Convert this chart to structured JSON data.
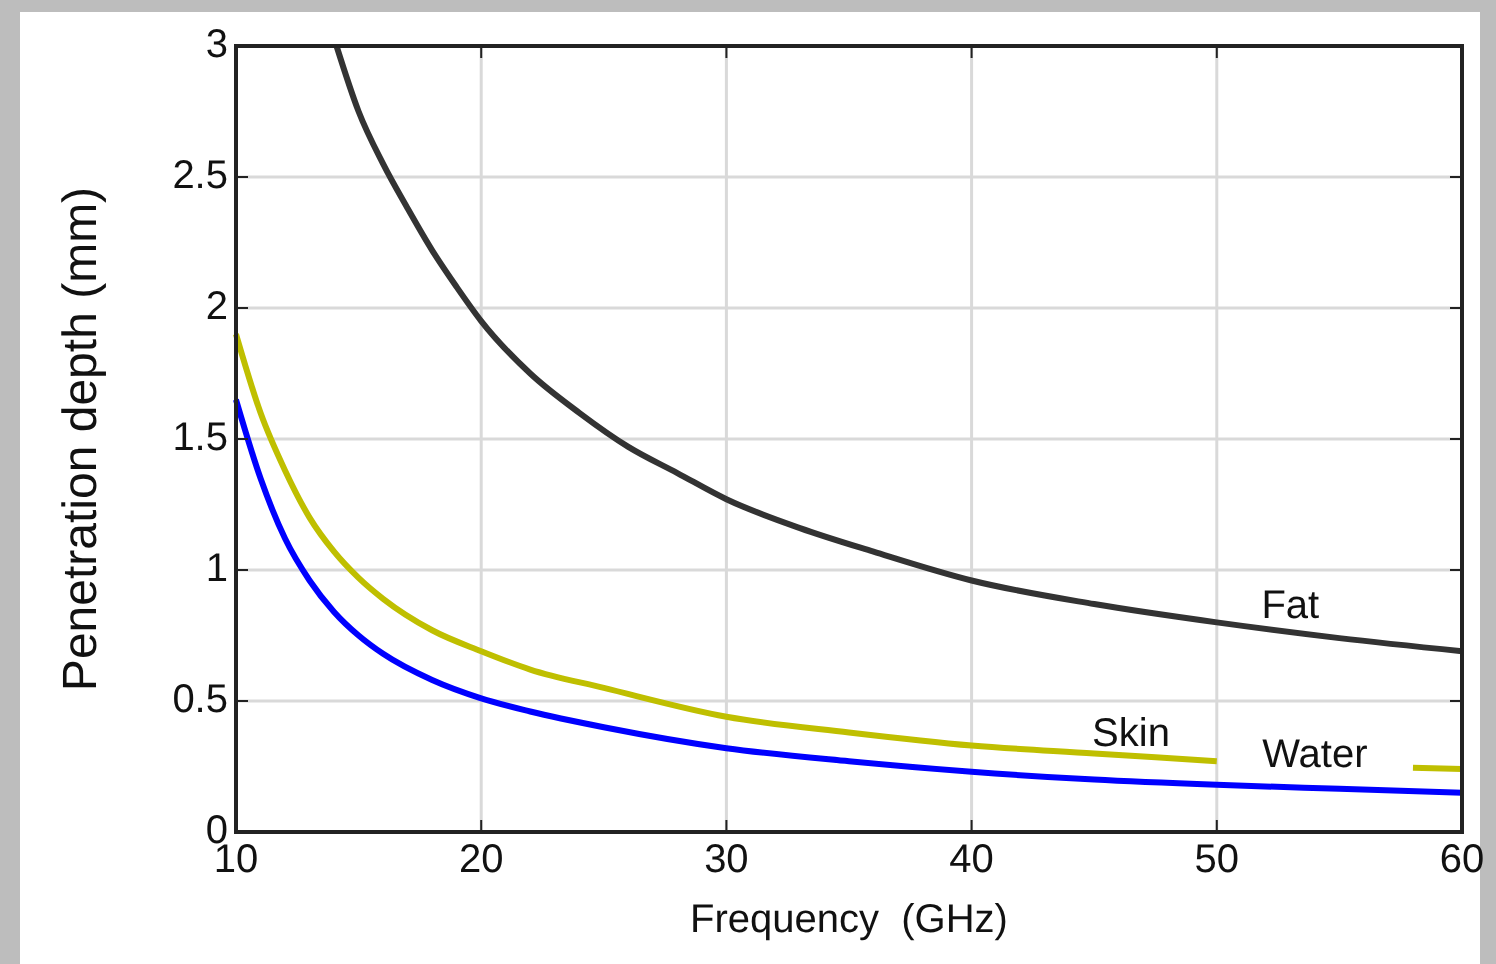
{
  "chart_data": {
    "type": "line",
    "xlabel": "Frequency  (GHz)",
    "ylabel": "Penetration depth (mm)",
    "xlim": [
      10,
      60
    ],
    "ylim": [
      0,
      3
    ],
    "xticks": [
      10,
      20,
      30,
      40,
      50,
      60
    ],
    "yticks": [
      0,
      0.5,
      1,
      1.5,
      2,
      2.5,
      3
    ],
    "grid": true,
    "line_style": "solid",
    "series": [
      {
        "name": "Fat",
        "color": "#333333",
        "x": [
          14.1,
          15,
          16,
          17,
          18,
          19,
          20,
          22,
          24,
          26,
          28,
          30,
          33,
          36,
          40,
          45,
          50,
          55,
          60
        ],
        "values": [
          3,
          2.75,
          2.55,
          2.38,
          2.22,
          2.08,
          1.95,
          1.75,
          1.6,
          1.47,
          1.37,
          1.27,
          1.16,
          1.07,
          0.96,
          0.87,
          0.8,
          0.74,
          0.69
        ]
      },
      {
        "name": "Skin",
        "color": "#bfbf00",
        "x": [
          10,
          11,
          12,
          13,
          14,
          15,
          16,
          18,
          20,
          22,
          25,
          30,
          35,
          40,
          45,
          50,
          54,
          58,
          60
        ],
        "values": [
          1.9,
          1.6,
          1.38,
          1.2,
          1.07,
          0.97,
          0.89,
          0.77,
          0.69,
          0.62,
          0.55,
          0.44,
          0.38,
          0.33,
          0.3,
          0.27,
          null,
          0.245,
          0.24
        ]
      },
      {
        "name": "Water",
        "color": "#0000ff",
        "x": [
          10,
          11,
          12,
          13,
          14,
          15,
          16,
          18,
          20,
          22,
          25,
          30,
          35,
          40,
          45,
          50,
          55,
          60
        ],
        "values": [
          1.65,
          1.35,
          1.12,
          0.96,
          0.84,
          0.75,
          0.68,
          0.58,
          0.51,
          0.46,
          0.4,
          0.32,
          0.27,
          0.23,
          0.2,
          0.18,
          0.165,
          0.15
        ]
      }
    ]
  }
}
